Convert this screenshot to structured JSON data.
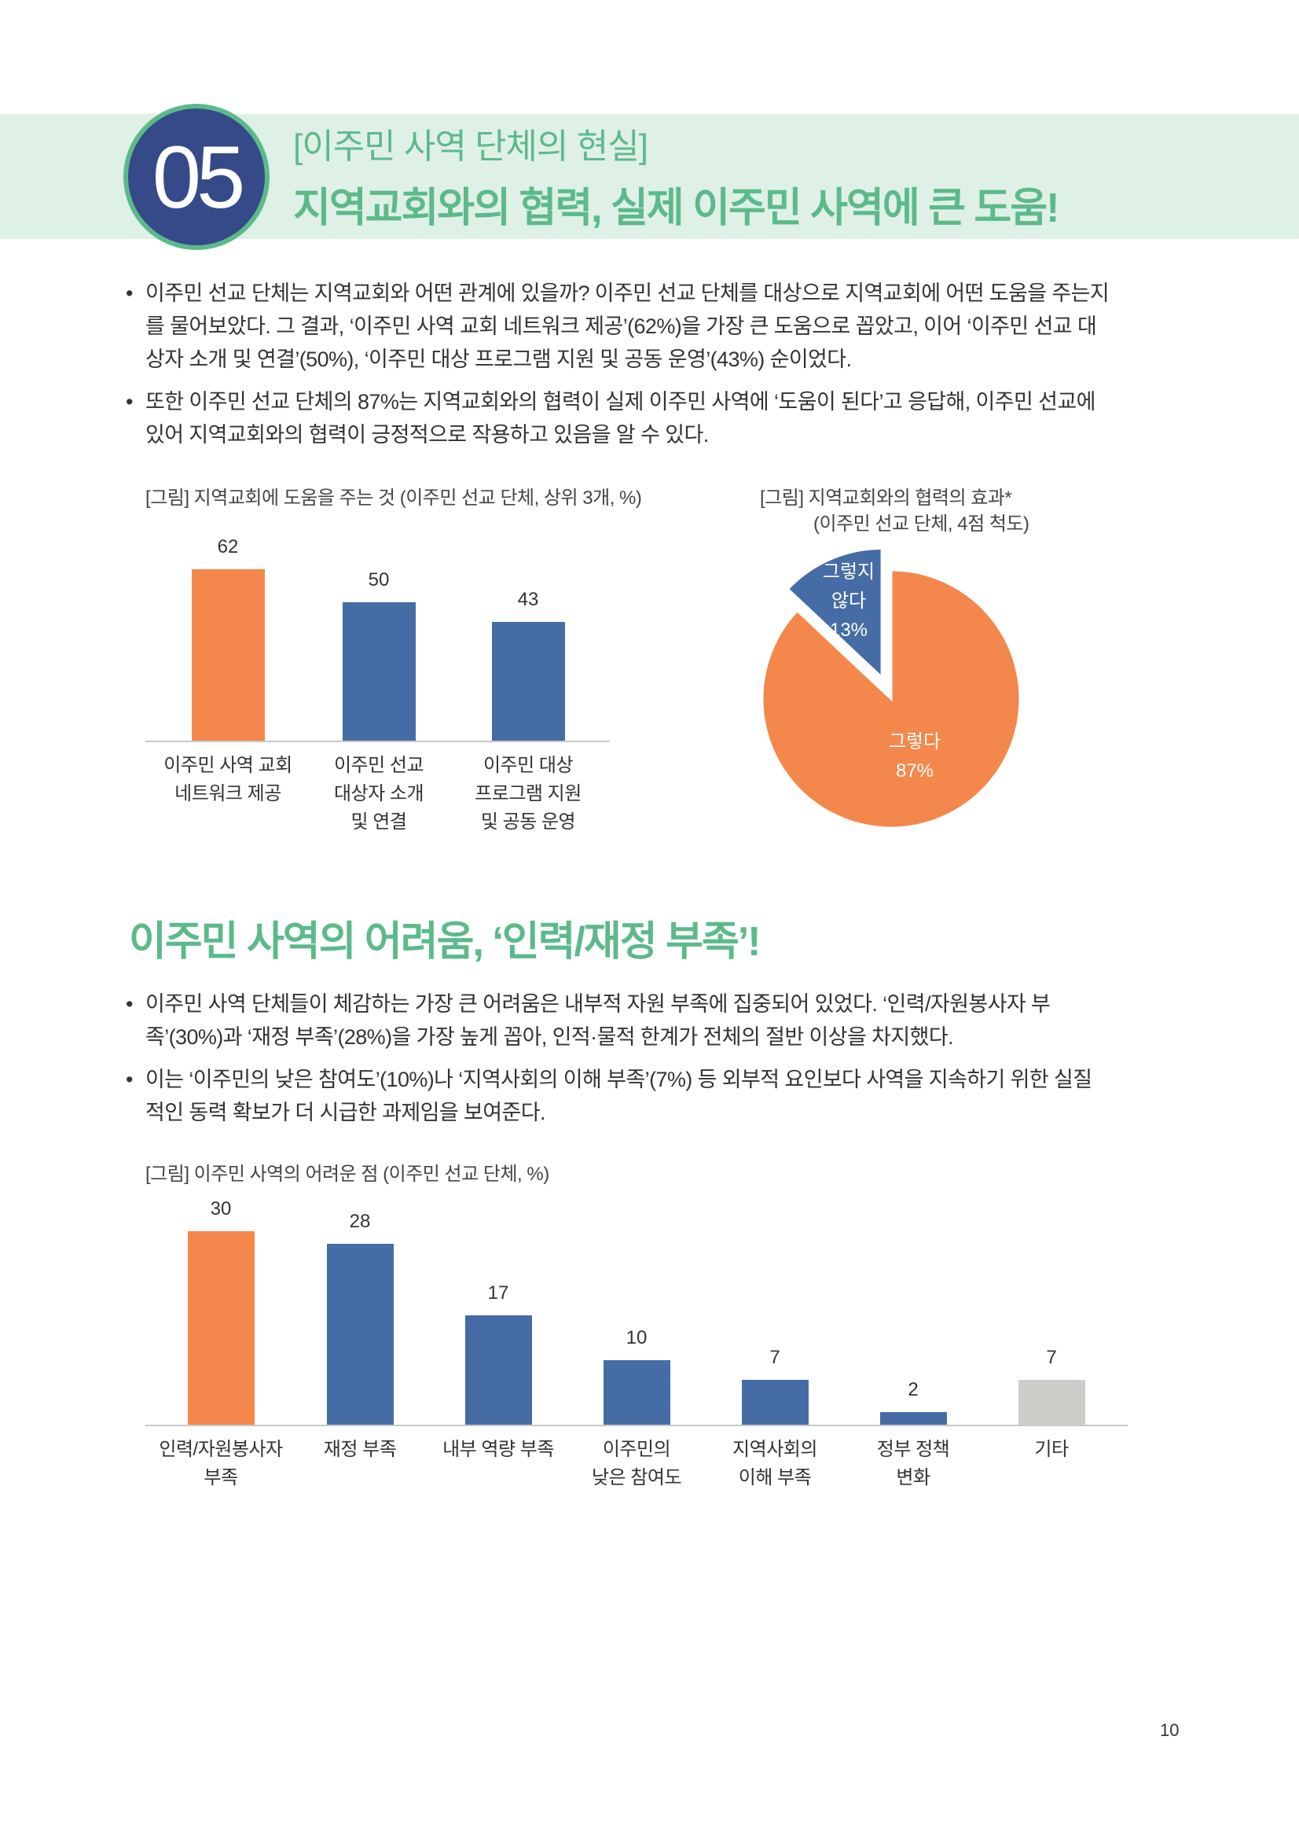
{
  "header": {
    "number": "05",
    "kicker": "[이주민 사역 단체의 현실]",
    "title": "지역교회와의 협력, 실제 이주민 사역에 큰 도움!"
  },
  "section1": {
    "bullets": [
      {
        "lines": [
          "이주민 선교 단체는 지역교회와 어떤 관계에 있을까? 이주민 선교 단체를 대상으로 지역교회에 어떤 도움을 주는지",
          "를 물어보았다. 그 결과, ‘이주민 사역 교회 네트워크 제공’(62%)을 가장 큰 도움으로 꼽았고, 이어 ‘이주민 선교 대",
          "상자 소개 및 연결’(50%), ‘이주민 대상 프로그램 지원 및 공동 운영’(43%) 순이었다."
        ]
      },
      {
        "lines": [
          "또한 이주민 선교 단체의 87%는 지역교회와의 협력이 실제 이주민 사역에 ‘도움이 된다’고 응답해, 이주민 선교에",
          "있어 지역교회와의 협력이 긍정적으로 작용하고 있음을 알 수 있다."
        ]
      }
    ]
  },
  "section2": {
    "heading": "이주민 사역의 어려움, ‘인력/재정 부족’!",
    "bullets": [
      {
        "lines": [
          "이주민 사역 단체들이 체감하는 가장 큰 어려움은 내부적 자원 부족에 집중되어 있었다. ‘인력/자원봉사자 부",
          "족’(30%)과 ‘재정 부족’(28%)을 가장 높게 꼽아, 인적·물적 한계가 전체의 절반 이상을 차지했다."
        ]
      },
      {
        "lines": [
          "이는 ‘이주민의 낮은 참여도’(10%)나 ‘지역사회의 이해 부족’(7%) 등 외부적 요인보다 사역을 지속하기 위한 실질",
          "적인 동력 확보가 더 시급한 과제임을 보여준다."
        ]
      }
    ]
  },
  "page_number": "10",
  "colors": {
    "green": "#5cba8a",
    "navy": "#364a89",
    "orange": "#f4874b",
    "blue": "#466ca6",
    "gray": "#cfcdca"
  },
  "chart_data": [
    {
      "type": "bar",
      "title": "[그림] 지역교회에 도움을 주는 것 (이주민 선교 단체, 상위 3개, %)",
      "categories": [
        [
          "이주민 사역 교회",
          "네트워크 제공"
        ],
        [
          "이주민 선교",
          "대상자 소개",
          "및 연결"
        ],
        [
          "이주민 대상",
          "프로그램 지원",
          "및 공동 운영"
        ]
      ],
      "values": [
        62,
        50,
        43
      ],
      "bar_colors": [
        "#f4874b",
        "#466ca6",
        "#466ca6"
      ],
      "ylim": [
        0,
        62
      ],
      "grid": false
    },
    {
      "type": "pie",
      "title": "[그림] 지역교회와의 협력의 효과*",
      "subtitle": "(이주민 선교 단체, 4점 척도)",
      "slices": [
        {
          "label": [
            "그렇지",
            "않다"
          ],
          "value": 13,
          "display": "13%",
          "color": "#466ca6",
          "exploded": true
        },
        {
          "label": [
            "그렇다"
          ],
          "value": 87,
          "display": "87%",
          "color": "#f4874b",
          "exploded": false
        }
      ]
    },
    {
      "type": "bar",
      "title": "[그림] 이주민 사역의 어려운 점 (이주민 선교 단체, %)",
      "categories": [
        [
          "인력/자원봉사자",
          "부족"
        ],
        [
          "재정 부족"
        ],
        [
          "내부 역량 부족"
        ],
        [
          "이주민의",
          "낮은 참여도"
        ],
        [
          "지역사회의",
          "이해 부족"
        ],
        [
          "정부 정책",
          "변화"
        ],
        [
          "기타"
        ]
      ],
      "values": [
        30,
        28,
        17,
        10,
        7,
        2,
        7
      ],
      "bar_colors": [
        "#f4874b",
        "#466ca6",
        "#466ca6",
        "#466ca6",
        "#466ca6",
        "#466ca6",
        "#cfcdca"
      ],
      "ylim": [
        0,
        30
      ],
      "grid": false
    }
  ]
}
